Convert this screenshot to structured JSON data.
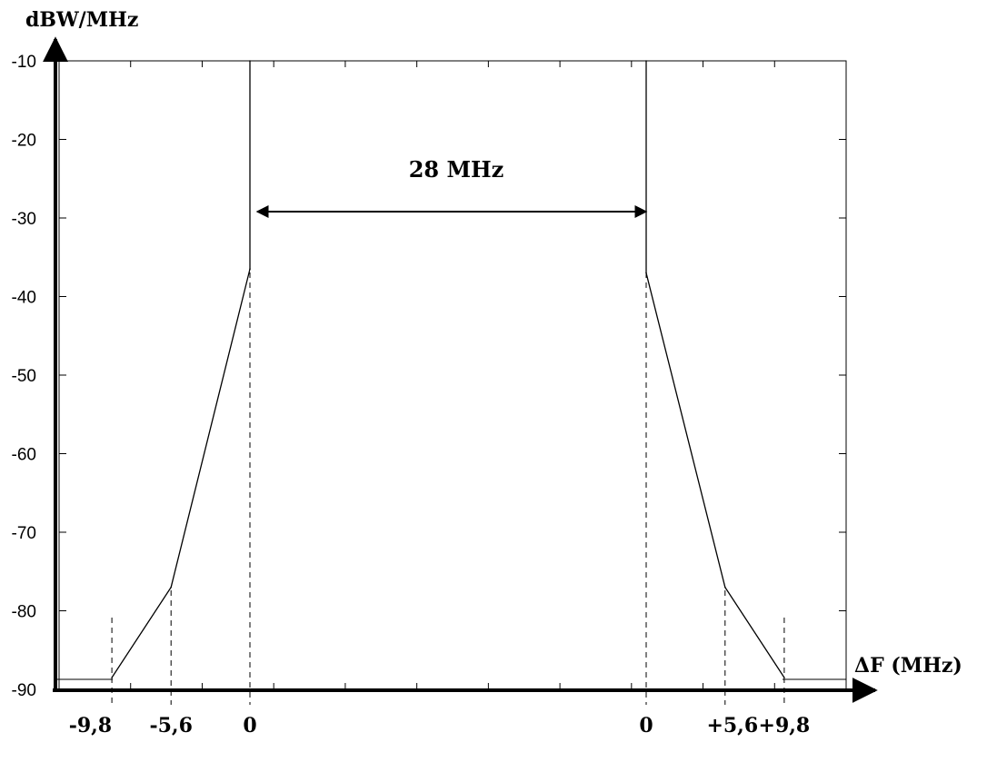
{
  "chart_data": {
    "type": "line",
    "title": "",
    "ylabel": "dBW/MHz",
    "xlabel": "ΔF (MHz)",
    "ylim": [
      -90,
      -10
    ],
    "yticks": [
      -10,
      -20,
      -30,
      -40,
      -50,
      -60,
      -70,
      -80,
      -90
    ],
    "ytick_labels": [
      "-10",
      "-20",
      "-30",
      "-40",
      "-50",
      "-60",
      "-70",
      "-80",
      "-90"
    ],
    "grid": false,
    "spacing_annotation": "28 MHz",
    "x_markers": [
      "-9,8",
      "-5,6",
      "0",
      "0",
      "+5,6",
      "+9,8"
    ],
    "series": [
      {
        "points": [
          {
            "x": -9.8,
            "y": -88.5
          },
          {
            "x": -5.6,
            "y": -77
          },
          {
            "x": 0,
            "y": -36.5
          },
          {
            "x": 0,
            "y": -10
          }
        ]
      },
      {
        "points": [
          {
            "x": 0,
            "y": -10
          },
          {
            "x": 0,
            "y": -37
          },
          {
            "x": 5.6,
            "y": -77
          },
          {
            "x": 9.8,
            "y": -88.5
          }
        ]
      }
    ]
  }
}
